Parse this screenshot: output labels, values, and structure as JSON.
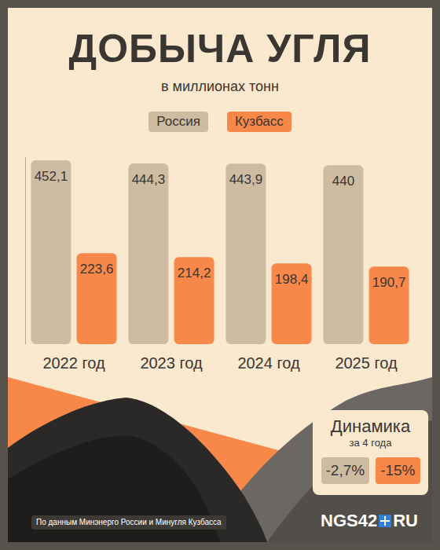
{
  "chart_data": {
    "type": "bar",
    "title": "ДОБЫЧА УГЛЯ",
    "subtitle": "в миллионах тонн",
    "categories": [
      "2022 год",
      "2023 год",
      "2024 год",
      "2025 год"
    ],
    "series": [
      {
        "name": "Россия",
        "color": "#cdbca2",
        "values": [
          452.1,
          444.3,
          443.9,
          440
        ],
        "value_labels": [
          "452,1",
          "444,3",
          "443,9",
          "440"
        ]
      },
      {
        "name": "Кузбасс",
        "color": "#f7884a",
        "values": [
          223.6,
          214.2,
          198.4,
          190.7
        ],
        "value_labels": [
          "223,6",
          "214,2",
          "198,4",
          "190,7"
        ]
      }
    ],
    "ylim": [
      0,
      460
    ],
    "tick_labels": "x",
    "grid": false,
    "legend": "top",
    "data_labels": true,
    "annotations": {
      "dynamics": {
        "title": "Динамика",
        "subtitle": "за 4 года",
        "labels": [
          "-2,7%",
          "-15%"
        ]
      },
      "source": "По данным Минэнерго России и Минугля Кузбасса",
      "logo": [
        "NGS42",
        "RU"
      ]
    }
  }
}
